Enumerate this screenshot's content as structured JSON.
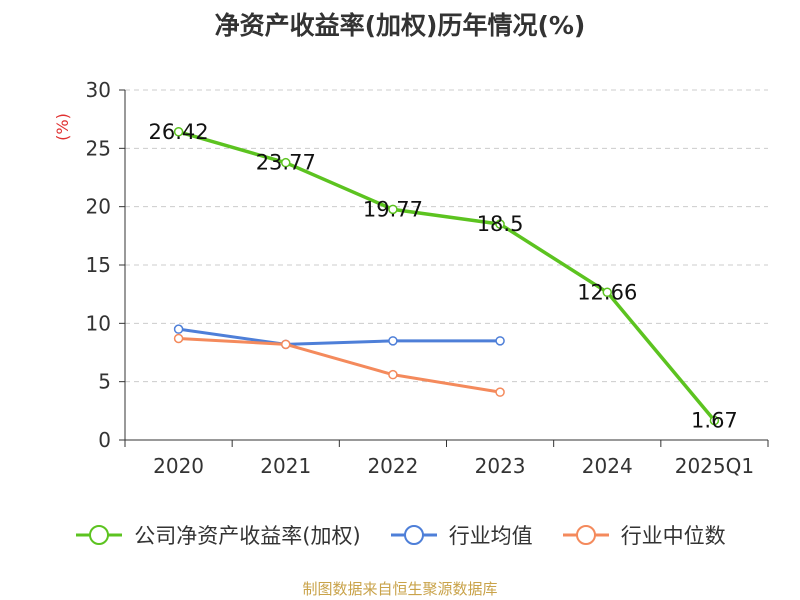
{
  "chart_data": {
    "type": "line",
    "title": "净资产收益率(加权)历年情况(%)",
    "ylabel": "(%)",
    "xlabel": "",
    "categories": [
      "2020",
      "2021",
      "2022",
      "2023",
      "2024",
      "2025Q1"
    ],
    "ylim": [
      0,
      30
    ],
    "yticks": [
      0,
      5,
      10,
      15,
      20,
      25,
      30
    ],
    "grid": "horizontal dashed",
    "legend_position": "bottom",
    "series": [
      {
        "name": "公司净资产收益率(加权)",
        "color": "#5cc320",
        "values": [
          26.42,
          23.77,
          19.77,
          18.5,
          12.66,
          1.67
        ],
        "labels": [
          "26.42",
          "23.77",
          "19.77",
          "18.5",
          "12.66",
          "1.67"
        ]
      },
      {
        "name": "行业均值",
        "color": "#4e7fd8",
        "values": [
          9.5,
          8.2,
          8.5,
          8.5,
          null,
          null
        ]
      },
      {
        "name": "行业中位数",
        "color": "#f48a5c",
        "values": [
          8.7,
          8.2,
          5.6,
          4.1,
          null,
          null
        ]
      }
    ],
    "ylabel_color": "#e03030",
    "source": "制图数据来自恒生聚源数据库",
    "source_color": "#c9a34a"
  }
}
